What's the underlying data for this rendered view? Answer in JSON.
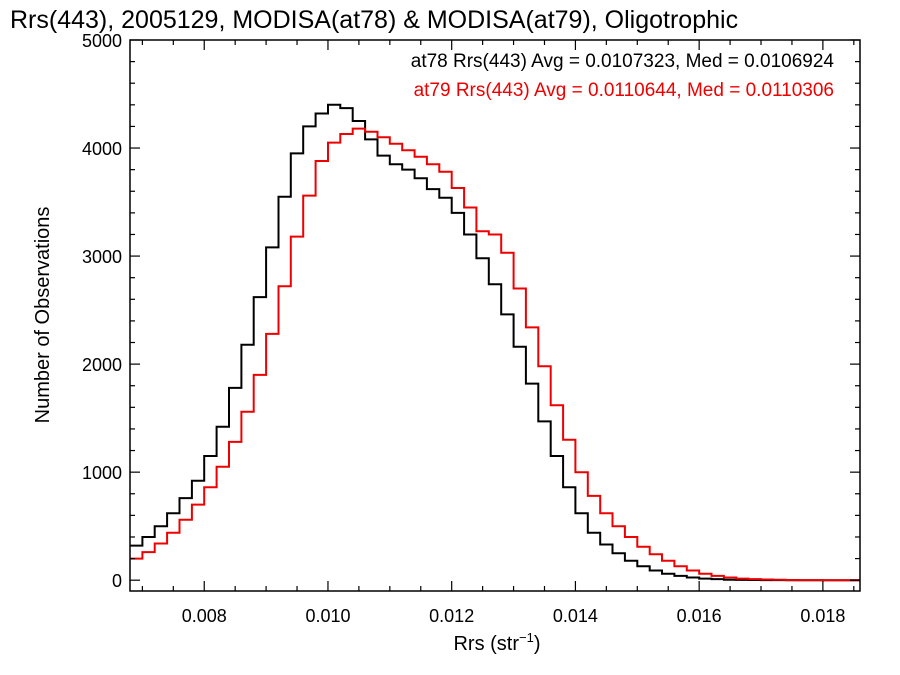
{
  "chart_data": {
    "type": "line",
    "style": "step histogram",
    "title": "Rrs(443), 2005129, MODISA(at78) & MODISA(at79), Oligotrophic",
    "xlabel": "Rrs (str",
    "xlabel_sup": "−1",
    "xlabel_close": ")",
    "ylabel": "Number of Observations",
    "xlim": [
      0.0068,
      0.0186
    ],
    "ylim": [
      -100,
      5000
    ],
    "xticks": [
      0.008,
      0.01,
      0.012,
      0.014,
      0.016,
      0.018
    ],
    "xtick_labels": [
      "0.008",
      "0.010",
      "0.012",
      "0.014",
      "0.016",
      "0.018"
    ],
    "yticks": [
      0,
      1000,
      2000,
      3000,
      4000,
      5000
    ],
    "ytick_labels": [
      "0",
      "1000",
      "2000",
      "3000",
      "4000",
      "5000"
    ],
    "grid": false,
    "legend_position": "top-right",
    "legend": [
      {
        "text": "at78 Rrs(443) Avg = 0.0107323, Med = 0.0106924",
        "color": "#000000"
      },
      {
        "text": "at79 Rrs(443) Avg = 0.0110644, Med = 0.0110306",
        "color": "#ee0000"
      }
    ],
    "series": [
      {
        "name": "at78",
        "color": "#000000",
        "x": [
          0.0068,
          0.007,
          0.0072,
          0.0074,
          0.0076,
          0.0078,
          0.008,
          0.0082,
          0.0084,
          0.0086,
          0.0088,
          0.009,
          0.0092,
          0.0094,
          0.0096,
          0.0098,
          0.01,
          0.0102,
          0.0104,
          0.0106,
          0.0108,
          0.011,
          0.0112,
          0.0114,
          0.0116,
          0.0118,
          0.012,
          0.0122,
          0.0124,
          0.0126,
          0.0128,
          0.013,
          0.0132,
          0.0134,
          0.0136,
          0.0138,
          0.014,
          0.0142,
          0.0144,
          0.0146,
          0.0148,
          0.015,
          0.0152,
          0.0154,
          0.0156,
          0.0158,
          0.016,
          0.0162,
          0.0164,
          0.0166,
          0.0168,
          0.017,
          0.0172,
          0.0174,
          0.0176,
          0.0178,
          0.018,
          0.0182,
          0.0184,
          0.0186
        ],
        "y": [
          320,
          400,
          500,
          620,
          760,
          920,
          1150,
          1420,
          1780,
          2180,
          2620,
          3080,
          3550,
          3950,
          4200,
          4320,
          4400,
          4370,
          4250,
          4080,
          3930,
          3850,
          3800,
          3720,
          3620,
          3540,
          3400,
          3200,
          2980,
          2740,
          2460,
          2160,
          1820,
          1470,
          1150,
          860,
          620,
          440,
          330,
          250,
          180,
          130,
          90,
          60,
          40,
          25,
          15,
          10,
          5,
          3,
          2,
          1,
          1,
          0,
          0,
          0,
          0,
          0,
          0,
          0
        ]
      },
      {
        "name": "at79",
        "color": "#ee0000",
        "x": [
          0.0068,
          0.007,
          0.0072,
          0.0074,
          0.0076,
          0.0078,
          0.008,
          0.0082,
          0.0084,
          0.0086,
          0.0088,
          0.009,
          0.0092,
          0.0094,
          0.0096,
          0.0098,
          0.01,
          0.0102,
          0.0104,
          0.0106,
          0.0108,
          0.011,
          0.0112,
          0.0114,
          0.0116,
          0.0118,
          0.012,
          0.0122,
          0.0124,
          0.0126,
          0.0128,
          0.013,
          0.0132,
          0.0134,
          0.0136,
          0.0138,
          0.014,
          0.0142,
          0.0144,
          0.0146,
          0.0148,
          0.015,
          0.0152,
          0.0154,
          0.0156,
          0.0158,
          0.016,
          0.0162,
          0.0164,
          0.0166,
          0.0168,
          0.017,
          0.0172,
          0.0174,
          0.0176,
          0.0178,
          0.018,
          0.0182,
          0.0184,
          0.0186
        ],
        "y": [
          200,
          260,
          340,
          440,
          560,
          700,
          860,
          1050,
          1280,
          1560,
          1900,
          2280,
          2720,
          3180,
          3560,
          3880,
          4050,
          4130,
          4180,
          4150,
          4100,
          4040,
          3980,
          3920,
          3850,
          3780,
          3630,
          3450,
          3230,
          3200,
          3030,
          2700,
          2340,
          1980,
          1620,
          1300,
          1000,
          780,
          620,
          500,
          400,
          310,
          240,
          180,
          130,
          90,
          60,
          40,
          25,
          15,
          10,
          6,
          4,
          2,
          1,
          1,
          0,
          0,
          0,
          0
        ]
      }
    ]
  }
}
